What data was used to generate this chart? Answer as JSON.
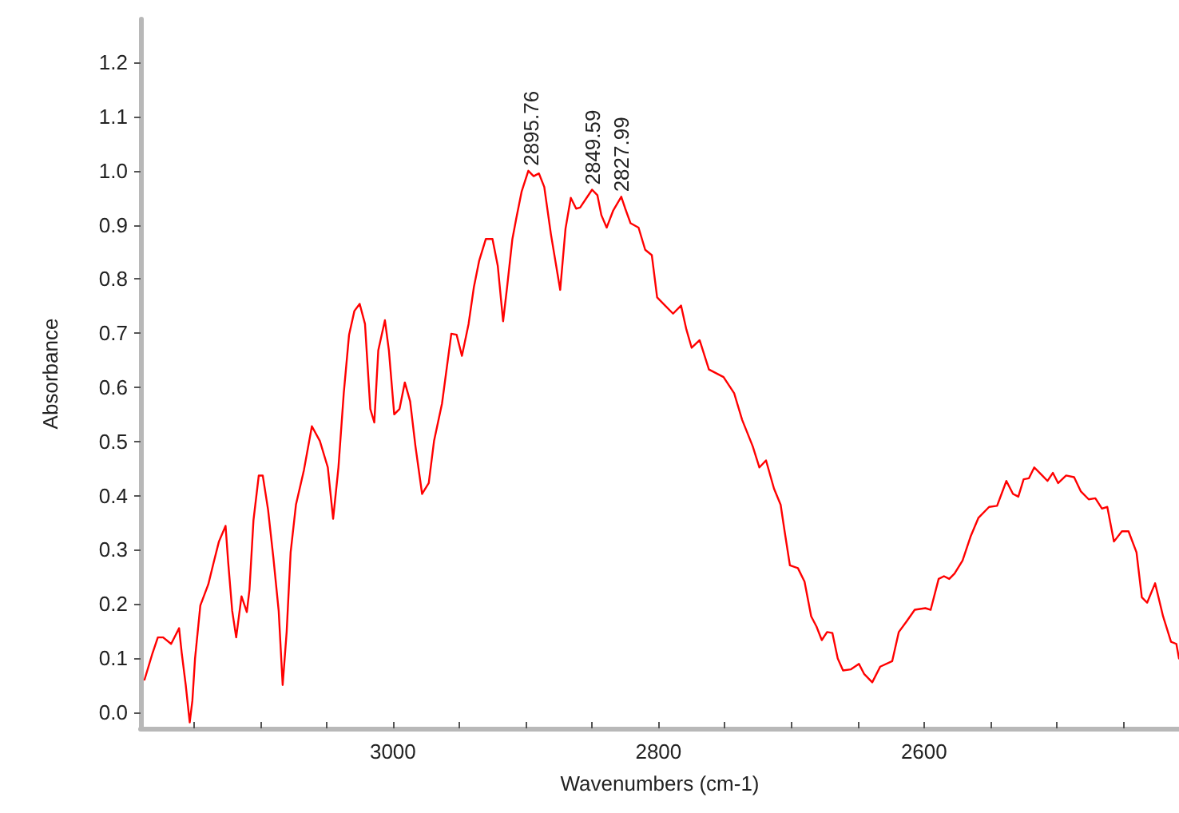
{
  "chart_data": {
    "type": "line",
    "xlabel": "Wavenumbers (cm-1)",
    "ylabel": "Absorbance",
    "xlim": [
      3190,
      2408
    ],
    "ylim": [
      -0.03,
      1.28
    ],
    "xticks": [
      {
        "value": 3150,
        "label": null
      },
      {
        "value": 3100,
        "label": null
      },
      {
        "value": 3050,
        "label": null
      },
      3000,
      {
        "value": 2950,
        "label": null
      },
      {
        "value": 2900,
        "label": null
      },
      {
        "value": 2850,
        "label": null
      },
      2800,
      {
        "value": 2750,
        "label": null
      },
      {
        "value": 2700,
        "label": null
      },
      {
        "value": 2650,
        "label": null
      },
      2600,
      {
        "value": 2550,
        "label": null
      },
      {
        "value": 2500,
        "label": null
      },
      {
        "value": 2450,
        "label": null
      }
    ],
    "yticks": [
      {
        "value": 0,
        "label": "0.0"
      },
      0.1,
      0.2,
      0.3,
      0.4,
      0.5,
      0.6,
      0.7,
      0.8,
      0.9,
      {
        "value": 1,
        "label": "1.0"
      },
      1.1,
      1.2
    ],
    "marker": "none",
    "line_style": "solid",
    "annotations": [
      {
        "text": "2895.76",
        "x": 2895.76,
        "y": 1.0
      },
      {
        "text": "2849.59",
        "x": 2849.59,
        "y": 0.965
      },
      {
        "text": "2827.99",
        "x": 2827.99,
        "y": 0.952
      }
    ],
    "series": [
      {
        "color": "#ff0000",
        "x": [
          3187,
          3181,
          3177,
          3173,
          3167,
          3161,
          3159,
          3156,
          3153,
          3151,
          3149,
          3145,
          3139,
          3135,
          3131,
          3126,
          3124,
          3121,
          3118,
          3114,
          3110,
          3108,
          3105,
          3101,
          3098,
          3094,
          3090,
          3086,
          3083,
          3080,
          3077,
          3073,
          3067,
          3061,
          3055,
          3049,
          3045,
          3041,
          3037,
          3033,
          3029,
          3025,
          3021,
          3017,
          3014,
          3011,
          3006,
          3003,
          2999,
          2995,
          2991,
          2987,
          2983,
          2978,
          2973,
          2969,
          2963,
          2956,
          2952,
          2948,
          2943,
          2939,
          2935,
          2930,
          2925,
          2921,
          2917,
          2914,
          2910,
          2907,
          2903,
          2898,
          2894,
          2890,
          2886,
          2881,
          2874,
          2870,
          2866,
          2862,
          2859,
          2850,
          2846,
          2843,
          2839,
          2834,
          2828,
          2825,
          2821,
          2815,
          2810,
          2805,
          2801,
          2795,
          2789,
          2783,
          2779,
          2775,
          2769,
          2762,
          2751,
          2743,
          2737,
          2729,
          2724,
          2719,
          2713,
          2708,
          2705,
          2701,
          2695,
          2690,
          2685,
          2681,
          2677,
          2673,
          2669,
          2665,
          2661,
          2655,
          2649,
          2645,
          2639,
          2633,
          2624,
          2619,
          2613,
          2607,
          2599,
          2595,
          2589,
          2585,
          2581,
          2577,
          2571,
          2565,
          2559,
          2551,
          2545,
          2538,
          2533,
          2529,
          2525,
          2521,
          2517,
          2511,
          2507,
          2503,
          2499,
          2493,
          2487,
          2482,
          2476,
          2471,
          2466,
          2462,
          2457,
          2451,
          2446,
          2440,
          2436,
          2432,
          2426,
          2420,
          2414,
          2410,
          2408
        ],
        "values": [
          0.06,
          0.109,
          0.138,
          0.138,
          0.126,
          0.155,
          0.109,
          0.05,
          -0.019,
          0.021,
          0.099,
          0.197,
          0.236,
          0.276,
          0.315,
          0.344,
          0.276,
          0.187,
          0.138,
          0.214,
          0.185,
          0.226,
          0.354,
          0.437,
          0.437,
          0.374,
          0.285,
          0.187,
          0.05,
          0.148,
          0.295,
          0.383,
          0.447,
          0.528,
          0.501,
          0.452,
          0.357,
          0.452,
          0.589,
          0.697,
          0.741,
          0.754,
          0.717,
          0.56,
          0.535,
          0.668,
          0.724,
          0.668,
          0.55,
          0.56,
          0.609,
          0.574,
          0.491,
          0.403,
          0.423,
          0.501,
          0.57,
          0.699,
          0.697,
          0.658,
          0.717,
          0.785,
          0.834,
          0.874,
          0.874,
          0.824,
          0.722,
          0.785,
          0.874,
          0.913,
          0.962,
          1.0,
          0.99,
          0.995,
          0.97,
          0.883,
          0.78,
          0.893,
          0.95,
          0.93,
          0.932,
          0.965,
          0.955,
          0.918,
          0.895,
          0.927,
          0.952,
          0.93,
          0.903,
          0.895,
          0.854,
          0.844,
          0.766,
          0.751,
          0.736,
          0.751,
          0.707,
          0.673,
          0.687,
          0.633,
          0.619,
          0.589,
          0.54,
          0.491,
          0.452,
          0.465,
          0.413,
          0.383,
          0.334,
          0.271,
          0.266,
          0.241,
          0.177,
          0.158,
          0.133,
          0.148,
          0.146,
          0.099,
          0.077,
          0.079,
          0.089,
          0.07,
          0.055,
          0.084,
          0.094,
          0.148,
          0.168,
          0.189,
          0.192,
          0.189,
          0.246,
          0.251,
          0.246,
          0.256,
          0.28,
          0.324,
          0.359,
          0.379,
          0.381,
          0.427,
          0.403,
          0.398,
          0.43,
          0.432,
          0.452,
          0.437,
          0.427,
          0.442,
          0.423,
          0.437,
          0.434,
          0.408,
          0.393,
          0.395,
          0.376,
          0.379,
          0.315,
          0.334,
          0.334,
          0.295,
          0.212,
          0.202,
          0.238,
          0.177,
          0.13,
          0.126,
          0.099
        ]
      }
    ]
  }
}
